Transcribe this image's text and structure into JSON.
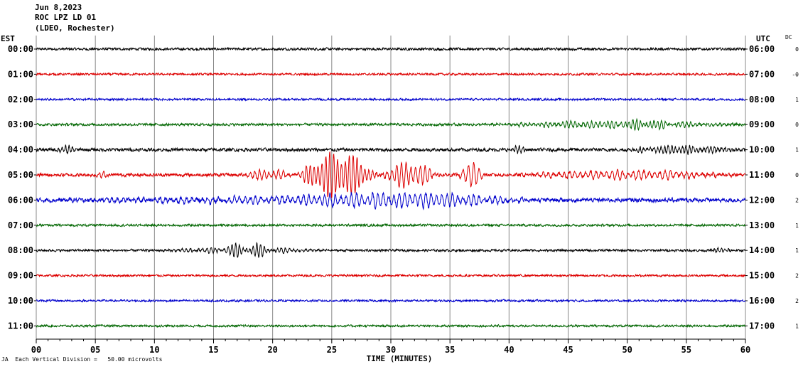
{
  "header": {
    "date": "Jun 8,2023",
    "station": "ROC LPZ LD 01",
    "network": "(LDEO, Rochester)"
  },
  "left_axis_label": "EST",
  "right_axis_label": "UTC",
  "dc_label": "DC",
  "footnote": {
    "marker": "JA",
    "text": "Each Vertical Division =   50.00 microvolts"
  },
  "chart_data": {
    "type": "line",
    "xlabel": "TIME (MINUTES)",
    "xlim": [
      0,
      60
    ],
    "x_ticks": [
      0,
      5,
      10,
      15,
      20,
      25,
      30,
      35,
      40,
      45,
      50,
      55,
      60
    ],
    "x_tick_labels": [
      "00",
      "05",
      "10",
      "15",
      "20",
      "25",
      "30",
      "35",
      "40",
      "45",
      "50",
      "55",
      "60"
    ],
    "grid": true,
    "vertical_division_microvolts": 50,
    "trace_colors": [
      "#000000",
      "#dd0000",
      "#0000cc",
      "#006600"
    ],
    "rows": [
      {
        "est": "00:00",
        "utc": "06:00",
        "dc": "0",
        "color": "#000000",
        "noise": 0.15,
        "events": []
      },
      {
        "est": "01:00",
        "utc": "07:00",
        "dc": "-0",
        "color": "#dd0000",
        "noise": 0.13,
        "events": []
      },
      {
        "est": "02:00",
        "utc": "08:00",
        "dc": "1",
        "color": "#0000cc",
        "noise": 0.13,
        "events": []
      },
      {
        "est": "03:00",
        "utc": "09:00",
        "dc": "0",
        "color": "#006600",
        "noise": 0.15,
        "events": [
          {
            "start": 38,
            "end": 60,
            "amp": 0.3,
            "period": 0.35
          },
          {
            "start": 47,
            "end": 55,
            "amp": 0.35,
            "period": 0.3
          }
        ]
      },
      {
        "est": "04:00",
        "utc": "10:00",
        "dc": "1",
        "color": "#000000",
        "noise": 0.2,
        "events": [
          {
            "start": 1.5,
            "end": 4,
            "amp": 0.35,
            "period": 0.3
          },
          {
            "start": 40,
            "end": 41.5,
            "amp": 0.4,
            "period": 0.3
          },
          {
            "start": 49.5,
            "end": 60,
            "amp": 0.35,
            "period": 0.3
          }
        ]
      },
      {
        "est": "05:00",
        "utc": "11:00",
        "dc": "0",
        "color": "#dd0000",
        "noise": 0.2,
        "events": [
          {
            "start": 5,
            "end": 6,
            "amp": 0.5,
            "period": 0.4
          },
          {
            "start": 17,
            "end": 22,
            "amp": 0.5,
            "period": 0.4
          },
          {
            "start": 22,
            "end": 29,
            "amp": 2.1,
            "period": 0.33
          },
          {
            "start": 29,
            "end": 34,
            "amp": 1.2,
            "period": 0.4
          },
          {
            "start": 35.5,
            "end": 38,
            "amp": 1.1,
            "period": 0.45
          },
          {
            "start": 40,
            "end": 60,
            "amp": 0.4,
            "period": 0.45
          }
        ]
      },
      {
        "est": "06:00",
        "utc": "12:00",
        "dc": "2",
        "color": "#0000cc",
        "noise": 0.25,
        "events": [
          {
            "start": 0,
            "end": 45,
            "amp": 0.3,
            "period": 0.45
          },
          {
            "start": 21,
            "end": 42,
            "amp": 0.45,
            "period": 0.45
          }
        ]
      },
      {
        "est": "07:00",
        "utc": "13:00",
        "dc": "1",
        "color": "#006600",
        "noise": 0.14,
        "events": []
      },
      {
        "est": "08:00",
        "utc": "14:00",
        "dc": "1",
        "color": "#000000",
        "noise": 0.14,
        "events": [
          {
            "start": 10,
            "end": 25,
            "amp": 0.25,
            "period": 0.35
          },
          {
            "start": 15,
            "end": 21,
            "amp": 0.45,
            "period": 0.3
          },
          {
            "start": 57,
            "end": 59,
            "amp": 0.25,
            "period": 0.3
          }
        ]
      },
      {
        "est": "09:00",
        "utc": "15:00",
        "dc": "2",
        "color": "#dd0000",
        "noise": 0.13,
        "events": []
      },
      {
        "est": "10:00",
        "utc": "16:00",
        "dc": "2",
        "color": "#0000cc",
        "noise": 0.13,
        "events": []
      },
      {
        "est": "11:00",
        "utc": "17:00",
        "dc": "1",
        "color": "#006600",
        "noise": 0.13,
        "events": []
      }
    ]
  }
}
